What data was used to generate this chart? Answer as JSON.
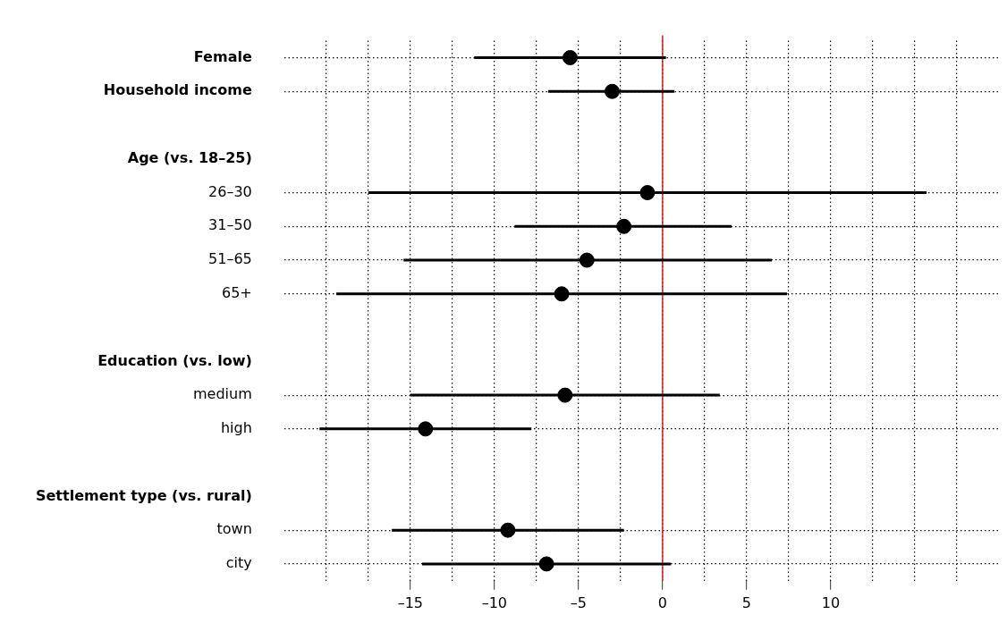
{
  "chart_data": {
    "type": "scatter",
    "orientation": "horizontal",
    "marker": "circle",
    "color": "#000000",
    "grid": true,
    "legend": false,
    "categories": [
      "Female",
      "Household income",
      null,
      "Age (vs. 18–25)",
      "26–30",
      "31–50",
      "51–65",
      "65+",
      null,
      "Education (vs. low)",
      "medium",
      "high",
      null,
      "Settlement type (vs. rural)",
      "town",
      "city"
    ],
    "values": [
      -5.5,
      -3.0,
      null,
      null,
      -0.9,
      -2.3,
      -4.5,
      -6.0,
      null,
      null,
      -5.8,
      -14.1,
      null,
      null,
      -9.2,
      -6.9
    ],
    "errors": [
      [
        -11.2,
        0.2
      ],
      [
        -6.8,
        0.7
      ],
      null,
      null,
      [
        -17.5,
        15.7
      ],
      [
        -8.8,
        4.1
      ],
      [
        -15.4,
        6.5
      ],
      [
        -19.4,
        7.4
      ],
      null,
      null,
      [
        -15.0,
        3.4
      ],
      [
        -20.4,
        -7.8
      ],
      null,
      null,
      [
        -16.1,
        -2.3
      ],
      [
        -14.3,
        0.5
      ]
    ],
    "xlim": [
      -22.5,
      20
    ],
    "xticks": [
      {
        "value": -20,
        "label": null
      },
      {
        "value": -17.5,
        "label": null
      },
      {
        "value": -15,
        "label": "–15"
      },
      {
        "value": -12.5,
        "label": null
      },
      {
        "value": -10,
        "label": "–10"
      },
      {
        "value": -7.5,
        "label": null
      },
      {
        "value": -5,
        "label": "–5"
      },
      {
        "value": -2.5,
        "label": null
      },
      0,
      {
        "value": 2.5,
        "label": null
      },
      5,
      {
        "value": 7.5,
        "label": null
      },
      10,
      {
        "value": 12.5,
        "label": null
      },
      {
        "value": 15,
        "label": null
      },
      {
        "value": 17.5,
        "label": null
      }
    ],
    "ref_lines": [
      {
        "axis": "x",
        "value": 0,
        "color": "#e31a1c"
      }
    ]
  }
}
